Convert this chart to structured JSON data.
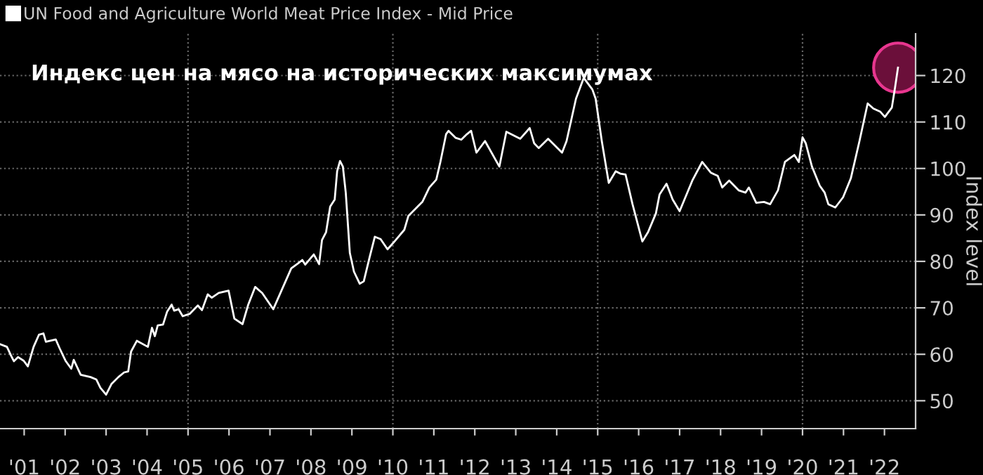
{
  "chart_data": {
    "type": "line",
    "annotations": [
      "Индекс цен на мясо на исторических максимумах"
    ],
    "ylabel": "Index level",
    "xlim": [
      2000.41,
      2022.76
    ],
    "ylim": [
      44,
      129
    ],
    "yticks": [
      50,
      60,
      70,
      80,
      90,
      100,
      110,
      120
    ],
    "xticks": [
      {
        "value": 2001,
        "label": "'01"
      },
      {
        "value": 2002,
        "label": "'02"
      },
      {
        "value": 2003,
        "label": "'03"
      },
      {
        "value": 2004,
        "label": "'04"
      },
      {
        "value": 2005,
        "label": "'05"
      },
      {
        "value": 2006,
        "label": "'06"
      },
      {
        "value": 2007,
        "label": "'07"
      },
      {
        "value": 2008,
        "label": "'08"
      },
      {
        "value": 2009,
        "label": "'09"
      },
      {
        "value": 2010,
        "label": "'10"
      },
      {
        "value": 2011,
        "label": "'11"
      },
      {
        "value": 2012,
        "label": "'12"
      },
      {
        "value": 2013,
        "label": "'13"
      },
      {
        "value": 2014,
        "label": "'14"
      },
      {
        "value": 2015,
        "label": "'15"
      },
      {
        "value": 2016,
        "label": "'16"
      },
      {
        "value": 2017,
        "label": "'17"
      },
      {
        "value": 2018,
        "label": "'18"
      },
      {
        "value": 2019,
        "label": "'19"
      },
      {
        "value": 2020,
        "label": "'20"
      },
      {
        "value": 2021,
        "label": "'21"
      },
      {
        "value": 2022,
        "label": "'22"
      }
    ],
    "grid": "y",
    "legend": "top left",
    "line_style": "solid",
    "ref_lines": [
      {
        "axis": "x",
        "value": 2005,
        "color": "#666666",
        "line_style": "dotted"
      },
      {
        "axis": "x",
        "value": 2010,
        "color": "#666666",
        "line_style": "dotted"
      },
      {
        "axis": "x",
        "value": 2015,
        "color": "#666666",
        "line_style": "dotted"
      },
      {
        "axis": "x",
        "value": 2020,
        "color": "#666666",
        "line_style": "dotted"
      }
    ],
    "series": [
      {
        "name": "UN Food and Agriculture World Meat Price Index - Mid Price",
        "color": "#ffffff",
        "x": [
          2000.41,
          2000.58,
          2000.68,
          2000.75,
          2000.85,
          2000.99,
          2001.09,
          2001.23,
          2001.36,
          2001.47,
          2001.53,
          2001.77,
          2001.87,
          2002.01,
          2002.15,
          2002.21,
          2002.38,
          2002.62,
          2002.76,
          2002.86,
          2003.0,
          2003.13,
          2003.3,
          2003.44,
          2003.54,
          2003.61,
          2003.75,
          2004.02,
          2004.12,
          2004.19,
          2004.26,
          2004.39,
          2004.49,
          2004.6,
          2004.66,
          2004.77,
          2004.87,
          2005.04,
          2005.24,
          2005.34,
          2005.48,
          2005.58,
          2005.75,
          2005.99,
          2006.13,
          2006.33,
          2006.47,
          2006.64,
          2006.81,
          2007.08,
          2007.28,
          2007.52,
          2007.69,
          2007.79,
          2007.86,
          2008.07,
          2008.2,
          2008.27,
          2008.37,
          2008.47,
          2008.58,
          2008.64,
          2008.71,
          2008.78,
          2008.85,
          2008.95,
          2009.05,
          2009.19,
          2009.29,
          2009.43,
          2009.56,
          2009.7,
          2009.87,
          2010.04,
          2010.28,
          2010.38,
          2010.55,
          2010.72,
          2010.89,
          2011.06,
          2011.16,
          2011.3,
          2011.36,
          2011.53,
          2011.67,
          2011.81,
          2011.91,
          2012.04,
          2012.25,
          2012.6,
          2012.77,
          2013.11,
          2013.34,
          2013.45,
          2013.56,
          2013.79,
          2014.13,
          2014.24,
          2014.47,
          2014.66,
          2014.87,
          2014.95,
          2015.1,
          2015.27,
          2015.44,
          2015.55,
          2015.68,
          2015.85,
          2016.09,
          2016.23,
          2016.42,
          2016.51,
          2016.68,
          2016.83,
          2017.0,
          2017.31,
          2017.55,
          2017.76,
          2017.93,
          2018.04,
          2018.21,
          2018.44,
          2018.61,
          2018.69,
          2018.87,
          2019.06,
          2019.21,
          2019.4,
          2019.57,
          2019.8,
          2019.91,
          2020.0,
          2020.08,
          2020.23,
          2020.42,
          2020.54,
          2020.63,
          2020.8,
          2020.99,
          2021.18,
          2021.39,
          2021.59,
          2021.73,
          2021.9,
          2022.01,
          2022.18,
          2022.26,
          2022.33
        ],
        "values": [
          62.2,
          61.6,
          59.7,
          58.5,
          59.4,
          58.6,
          57.4,
          61.6,
          64.2,
          64.5,
          62.7,
          63.2,
          61.2,
          58.6,
          56.9,
          58.8,
          55.6,
          55.1,
          54.6,
          52.8,
          51.3,
          53.6,
          55.1,
          56.1,
          56.3,
          60.6,
          62.9,
          61.6,
          65.7,
          63.9,
          66.2,
          66.4,
          69.2,
          70.7,
          69.4,
          69.7,
          68.2,
          68.7,
          70.5,
          69.5,
          72.9,
          72.2,
          73.2,
          73.7,
          67.7,
          66.5,
          70.7,
          74.5,
          73.2,
          69.7,
          73.7,
          78.5,
          79.6,
          80.3,
          79.3,
          81.5,
          79.4,
          84.6,
          86.3,
          91.8,
          93.3,
          99.4,
          101.6,
          100.4,
          94.8,
          81.8,
          77.8,
          75.2,
          75.7,
          80.8,
          85.3,
          84.8,
          82.6,
          84.3,
          86.8,
          89.8,
          91.3,
          92.8,
          95.9,
          97.6,
          101.4,
          107.4,
          108.1,
          106.6,
          106.2,
          107.4,
          108.1,
          103.4,
          105.9,
          100.4,
          107.9,
          106.4,
          108.7,
          105.4,
          104.4,
          106.4,
          103.4,
          105.9,
          115.0,
          119.5,
          117.0,
          115.0,
          105.9,
          96.9,
          99.4,
          98.9,
          98.7,
          92.3,
          84.3,
          86.3,
          90.3,
          94.4,
          96.7,
          93.3,
          90.8,
          97.4,
          101.4,
          99.1,
          98.4,
          95.9,
          97.4,
          95.3,
          94.8,
          95.9,
          92.6,
          92.8,
          92.3,
          95.3,
          101.4,
          102.9,
          101.4,
          106.7,
          105.4,
          100.4,
          96.3,
          94.8,
          92.3,
          91.6,
          93.8,
          97.9,
          105.9,
          114.0,
          112.9,
          112.2,
          111.1,
          113.1,
          117.5,
          121.7
        ]
      }
    ]
  }
}
